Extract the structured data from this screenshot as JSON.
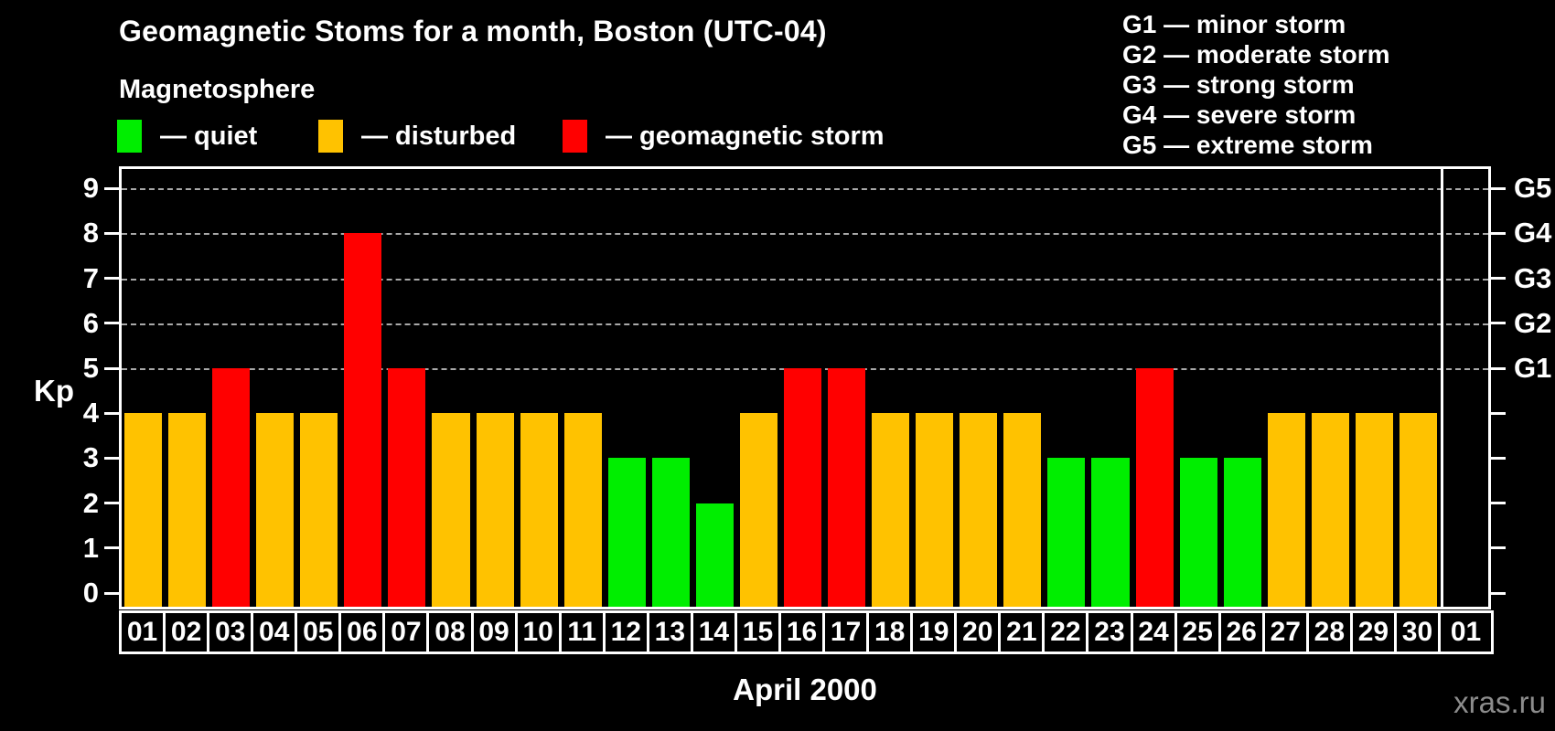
{
  "header": {
    "title": "Geomagnetic Stoms for a month, Boston (UTC-04)",
    "subtitle": "Magnetosphere"
  },
  "legend": {
    "items": [
      {
        "key": "quiet",
        "label": "— quiet"
      },
      {
        "key": "disturbed",
        "label": "— disturbed"
      },
      {
        "key": "storm",
        "label": "— geomagnetic storm"
      }
    ]
  },
  "g_scale": {
    "items": [
      "G1 — minor storm",
      "G2 — moderate storm",
      "G3 — strong storm",
      "G4 — severe storm",
      "G5 — extreme storm"
    ]
  },
  "chart_data": {
    "type": "bar",
    "title": "Geomagnetic Stoms for a month, Boston (UTC-04)",
    "xlabel": "April 2000",
    "ylabel": "Kp",
    "ylim": [
      0,
      9
    ],
    "y_ticks": [
      0,
      1,
      2,
      3,
      4,
      5,
      6,
      7,
      8,
      9
    ],
    "grid": "dashed horizontal gridlines at Kp 5,6,7,8,9 only",
    "legend_position": "top-left",
    "categories": [
      "01",
      "02",
      "03",
      "04",
      "05",
      "06",
      "07",
      "08",
      "09",
      "10",
      "11",
      "12",
      "13",
      "14",
      "15",
      "16",
      "17",
      "18",
      "19",
      "20",
      "21",
      "22",
      "23",
      "24",
      "25",
      "26",
      "27",
      "28",
      "29",
      "30",
      "01"
    ],
    "values": [
      4,
      4,
      5,
      4,
      4,
      8,
      5,
      4,
      4,
      4,
      4,
      3,
      3,
      2,
      4,
      5,
      5,
      4,
      4,
      4,
      4,
      3,
      3,
      5,
      3,
      3,
      4,
      4,
      4,
      4,
      null
    ],
    "status": [
      "disturbed",
      "disturbed",
      "storm",
      "disturbed",
      "disturbed",
      "storm",
      "storm",
      "disturbed",
      "disturbed",
      "disturbed",
      "disturbed",
      "quiet",
      "quiet",
      "quiet",
      "disturbed",
      "storm",
      "storm",
      "disturbed",
      "disturbed",
      "disturbed",
      "disturbed",
      "quiet",
      "quiet",
      "storm",
      "quiet",
      "quiet",
      "disturbed",
      "disturbed",
      "disturbed",
      "disturbed",
      null
    ],
    "colors": {
      "quiet": "#00EE00",
      "disturbed": "#FFC200",
      "storm": "#FF0000"
    },
    "right_axis": {
      "5": "G1",
      "6": "G2",
      "7": "G3",
      "8": "G4",
      "9": "G5"
    },
    "axis_color": "#FFFFFF",
    "gridline_color": "#A9A9A9",
    "background_color": "#000000"
  },
  "footer": {
    "month_label": "April 2000",
    "watermark": "xras.ru"
  }
}
